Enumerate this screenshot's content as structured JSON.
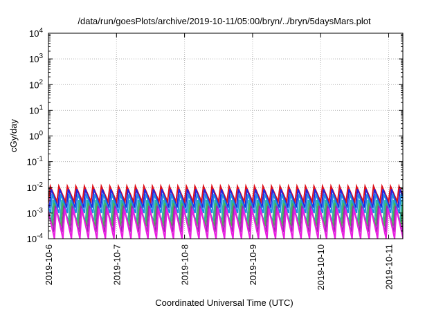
{
  "chart_data": {
    "type": "line",
    "title": "/data/run/goesPlots/archive/2019-10-11/05:00/bryn/../bryn/5daysMars.plot",
    "xlabel": "Coordinated Universal Time (UTC)",
    "ylabel": "cGy/day",
    "x_axis": {
      "type": "time",
      "range": [
        "2019-10-06T00:00",
        "2019-10-11T05:00"
      ],
      "ticks": [
        {
          "value": "2019-10-06T00:00",
          "label": "2019-10-6"
        },
        {
          "value": "2019-10-07T00:00",
          "label": "2019-10-7"
        },
        {
          "value": "2019-10-08T00:00",
          "label": "2019-10-8"
        },
        {
          "value": "2019-10-09T00:00",
          "label": "2019-10-9"
        },
        {
          "value": "2019-10-10T00:00",
          "label": "2019-10-10"
        },
        {
          "value": "2019-10-11T00:00",
          "label": "2019-10-11"
        }
      ]
    },
    "y_axis": {
      "scale": "log",
      "range": [
        0.0001,
        10000
      ],
      "ticks": [
        {
          "value": 10000,
          "base": "10",
          "exp": "4"
        },
        {
          "value": 1000,
          "base": "10",
          "exp": "3"
        },
        {
          "value": 100,
          "base": "10",
          "exp": "2"
        },
        {
          "value": 10,
          "base": "10",
          "exp": "1"
        },
        {
          "value": 1,
          "base": "10",
          "exp": "0"
        },
        {
          "value": 0.1,
          "base": "10",
          "exp": "-1"
        },
        {
          "value": 0.01,
          "base": "10",
          "exp": "-2"
        },
        {
          "value": 0.001,
          "base": "10",
          "exp": "-3"
        },
        {
          "value": 0.0001,
          "base": "10",
          "exp": "-4"
        }
      ]
    },
    "grid": true,
    "sawtooth_period_hours": 3,
    "series": [
      {
        "color": "#e0101a",
        "peak": 0.011,
        "trough": 0.0028,
        "phase_hours": 0.0
      },
      {
        "color": "#2222dd",
        "peak": 0.0085,
        "trough": 0.0016,
        "phase_hours": 0.35
      },
      {
        "color": "#1e88e5",
        "peak": 0.0055,
        "trough": 0.001,
        "phase_hours": 0.7
      },
      {
        "color": "#2db3a8",
        "peak": 0.0032,
        "trough": 0.00045,
        "phase_hours": 1.05
      },
      {
        "color": "#4caf50",
        "peak": 0.0024,
        "trough": 0.0003,
        "phase_hours": 1.4
      },
      {
        "color": "#9c27b0",
        "peak": 0.0019,
        "trough": 0.00018,
        "phase_hours": 1.75
      },
      {
        "color": "#e91ee0",
        "peak": 0.0015,
        "trough": 0.0001,
        "phase_hours": 2.1
      }
    ]
  }
}
